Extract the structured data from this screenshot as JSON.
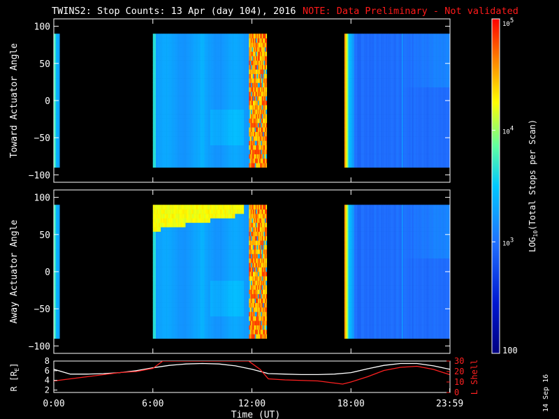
{
  "header": {
    "title": "TWINS2: Stop Counts: 13 Apr (day 104), 2016",
    "note": "NOTE: Data Preliminary - Not validated"
  },
  "footer": {
    "date_stamp": "14 Sep 16"
  },
  "colors": {
    "note": "#ff1a1a",
    "background": "#000000",
    "rshell_line": "#ffffff",
    "lshell_line": "#ff2020"
  },
  "chart_data": [
    {
      "type": "heatmap",
      "ylabel": "Toward Actuator Angle",
      "ylim": [
        -110,
        110
      ],
      "yticks": [
        100,
        50,
        0,
        -50,
        -100
      ],
      "ytick_labels": [
        "100",
        "50",
        "0",
        "−50",
        "−100"
      ],
      "xlim": [
        0,
        24
      ],
      "data_blocks": [
        {
          "start_h": 0.0,
          "end_h": 0.35
        },
        {
          "start_h": 6.0,
          "end_h": 12.9
        },
        {
          "start_h": 17.6,
          "end_h": 23.99
        }
      ],
      "angle_range": [
        -90,
        90
      ]
    },
    {
      "type": "heatmap",
      "ylabel": "Away Actuator Angle",
      "ylim": [
        -110,
        110
      ],
      "yticks": [
        100,
        50,
        0,
        -50,
        -100
      ],
      "ytick_labels": [
        "100",
        "50",
        "0",
        "−50",
        "−100"
      ],
      "xlim": [
        0,
        24
      ],
      "data_blocks": [
        {
          "start_h": 0.0,
          "end_h": 0.35
        },
        {
          "start_h": 6.0,
          "end_h": 12.9
        },
        {
          "start_h": 17.6,
          "end_h": 23.99
        }
      ],
      "angle_range": [
        -90,
        90
      ]
    },
    {
      "type": "line",
      "ylabel_left": "R [R",
      "ylabel_left_sub": "E",
      "ylabel_left_close": "]",
      "ylabel_right": "L Shell",
      "ylim_left": [
        1.5,
        8
      ],
      "yticks_left": [
        2,
        4,
        6,
        8
      ],
      "ylim_right": [
        0,
        30
      ],
      "yticks_right": [
        0,
        10,
        20,
        30
      ],
      "xlabel": "Time (UT)",
      "xlim": [
        0,
        24
      ],
      "xticks": [
        0,
        6,
        12,
        18,
        23.983
      ],
      "xtick_labels": [
        "0:00",
        "6:00",
        "12:00",
        "18:00",
        "23:59"
      ],
      "series": [
        {
          "axis": "left",
          "x": [
            0,
            1,
            2,
            3,
            4,
            5,
            6,
            7,
            8,
            9,
            10,
            11,
            12,
            13,
            14,
            15,
            16,
            17,
            18,
            19,
            20,
            21,
            22,
            23,
            23.983
          ],
          "values": [
            6.3,
            5.3,
            5.3,
            5.4,
            5.6,
            6.0,
            6.6,
            7.1,
            7.4,
            7.5,
            7.4,
            7.0,
            6.3,
            5.4,
            5.3,
            5.2,
            5.2,
            5.3,
            5.6,
            6.4,
            7.1,
            7.5,
            7.5,
            7.0,
            6.3
          ]
        },
        {
          "axis": "right",
          "x": [
            0,
            1,
            2,
            3,
            4,
            5,
            6,
            6.6,
            11.8,
            12.5,
            13,
            14,
            16,
            17.5,
            18,
            19,
            20,
            21,
            22,
            23,
            23.983
          ],
          "values": [
            11,
            13,
            15,
            17,
            19,
            20,
            23,
            30,
            30,
            22,
            13,
            12,
            11,
            8,
            10,
            15,
            21,
            24,
            25,
            22,
            17
          ]
        }
      ]
    }
  ],
  "colorbar": {
    "label": "LOG",
    "label_sub": "10",
    "label_rest": "(Total Stops per Scan)",
    "ticks": [
      {
        "value": 100,
        "label": "100"
      },
      {
        "value": 1000,
        "base": "10",
        "exp": "3"
      },
      {
        "value": 10000,
        "base": "10",
        "exp": "4"
      },
      {
        "value": 100000,
        "base": "10",
        "exp": "5"
      }
    ],
    "range": [
      100,
      100000
    ]
  }
}
